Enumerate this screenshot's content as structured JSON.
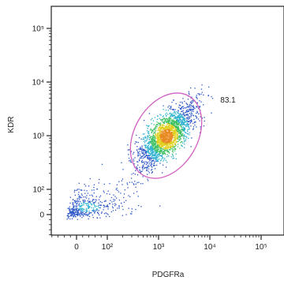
{
  "chart_data": {
    "type": "scatter",
    "title": "",
    "xlabel": "PDGFRa",
    "ylabel": "KDR",
    "scale": "biexponential",
    "x_ticks": [
      "0",
      "10²",
      "10³",
      "10⁴",
      "10⁵"
    ],
    "y_ticks": [
      "0",
      "10²",
      "10³",
      "10⁴",
      "10⁵"
    ],
    "x_tick_values": [
      0,
      100,
      1000,
      10000,
      100000
    ],
    "y_tick_values": [
      0,
      100,
      1000,
      10000,
      100000
    ],
    "gates": [
      {
        "name": "gate",
        "shape": "ellipse",
        "percent": "83.1",
        "center": [
          1400,
          1000
        ],
        "stroke_color": "#d060c0"
      }
    ],
    "populations": [
      {
        "name": "main",
        "center": [
          1400,
          1000
        ],
        "spread_log": [
          0.28,
          0.3
        ],
        "correlation": 0.75,
        "share": 0.83
      },
      {
        "name": "low",
        "center": [
          70,
          60
        ],
        "spread_log": [
          0.35,
          0.22
        ],
        "correlation": 0.4,
        "share": 0.17
      }
    ],
    "density_colors": [
      "#2b55c8",
      "#2ab0d0",
      "#3cc060",
      "#e0d020",
      "#e88820"
    ],
    "legend": "none",
    "grid": false
  }
}
